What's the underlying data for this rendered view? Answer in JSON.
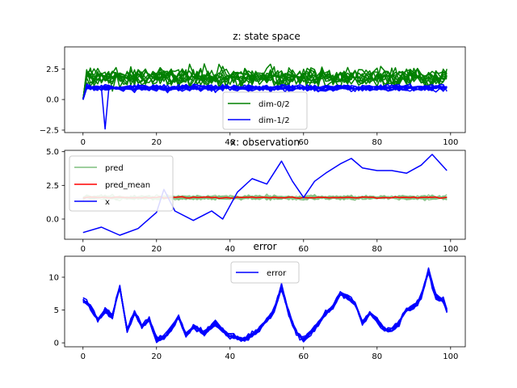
{
  "chart_data": [
    {
      "type": "line",
      "title": "z: state space",
      "xlim": [
        -5,
        104
      ],
      "ylim": [
        -2.7,
        4.3
      ],
      "xticks": [
        0,
        20,
        40,
        60,
        80,
        100
      ],
      "yticks": [
        -2.5,
        0.0,
        2.5
      ],
      "ytick_labels": [
        "−2.5",
        "0.0",
        "2.5"
      ],
      "legend": {
        "placement": "lower-center",
        "entries": [
          {
            "label": "dim-0/2",
            "color": "#008000"
          },
          {
            "label": "dim-1/2",
            "color": "#0000ff"
          }
        ]
      },
      "series": [
        {
          "name": "dim-0/2",
          "color": "#008000",
          "count": 10,
          "mean": 1.8,
          "noise": 0.55,
          "start": 0.0
        },
        {
          "name": "dim-1/2",
          "color": "#0000ff",
          "count": 10,
          "mean": 0.95,
          "noise": 0.18,
          "start": 0.0
        }
      ]
    },
    {
      "type": "line",
      "title": "x: observation",
      "xlim": [
        -5,
        104
      ],
      "ylim": [
        -1.5,
        5.1
      ],
      "xticks": [
        0,
        20,
        40,
        60,
        80,
        100
      ],
      "yticks": [
        0.0,
        2.5,
        5.0
      ],
      "ytick_labels": [
        "0.0",
        "2.5",
        "5.0"
      ],
      "legend": {
        "placement": "upper-left",
        "entries": [
          {
            "label": "pred",
            "color": "#7fbf7f"
          },
          {
            "label": "pred_mean",
            "color": "#ff0000"
          },
          {
            "label": "x",
            "color": "#0000ff"
          }
        ]
      },
      "series": [
        {
          "name": "pred",
          "color": "#7fbf7f",
          "count": 10,
          "mean": 1.6,
          "noise": 0.12
        },
        {
          "name": "pred_mean",
          "color": "#ff0000",
          "mean": 1.6,
          "noise": 0.04
        },
        {
          "name": "x",
          "color": "#0000ff",
          "x": [
            0,
            5,
            10,
            15,
            20,
            22,
            25,
            30,
            35,
            38,
            42,
            46,
            50,
            54,
            57,
            60,
            63,
            66,
            70,
            73,
            76,
            80,
            84,
            88,
            92,
            95,
            99
          ],
          "y": [
            -1.0,
            -0.6,
            -1.2,
            -0.7,
            0.5,
            2.2,
            0.6,
            -0.1,
            0.6,
            0.0,
            2.0,
            3.0,
            2.6,
            4.3,
            2.8,
            1.6,
            2.8,
            3.4,
            4.1,
            4.5,
            3.8,
            3.6,
            3.6,
            3.4,
            4.0,
            4.8,
            3.6
          ]
        }
      ]
    },
    {
      "type": "line",
      "title": "error",
      "xlim": [
        -5,
        104
      ],
      "ylim": [
        -0.6,
        13.2
      ],
      "xticks": [
        0,
        20,
        40,
        60,
        80,
        100
      ],
      "yticks": [
        0,
        5,
        10
      ],
      "ytick_labels": [
        "0",
        "5",
        "10"
      ],
      "legend": {
        "placement": "upper-center",
        "entries": [
          {
            "label": "error",
            "color": "#0000ff"
          }
        ]
      },
      "series": [
        {
          "name": "error",
          "color": "#0000ff",
          "count": 10,
          "x": [
            0,
            2,
            4,
            6,
            8,
            10,
            12,
            14,
            16,
            18,
            20,
            22,
            24,
            26,
            28,
            30,
            33,
            36,
            40,
            44,
            48,
            52,
            54,
            56,
            58,
            60,
            62,
            64,
            66,
            68,
            70,
            72,
            74,
            76,
            78,
            80,
            82,
            84,
            86,
            88,
            90,
            92,
            94,
            96,
            98,
            99
          ],
          "y": [
            6.5,
            5.5,
            3.5,
            5.0,
            4.0,
            8.5,
            2.0,
            4.5,
            2.5,
            3.5,
            0.5,
            0.8,
            2.0,
            4.0,
            1.0,
            2.5,
            1.5,
            3.0,
            1.0,
            0.5,
            2.0,
            5.0,
            8.5,
            4.5,
            1.5,
            0.5,
            1.5,
            3.0,
            4.5,
            5.5,
            7.5,
            7.0,
            6.0,
            3.0,
            4.5,
            3.5,
            2.0,
            2.0,
            3.0,
            5.0,
            5.5,
            7.0,
            11.0,
            7.0,
            6.5,
            5.0
          ]
        }
      ]
    }
  ]
}
